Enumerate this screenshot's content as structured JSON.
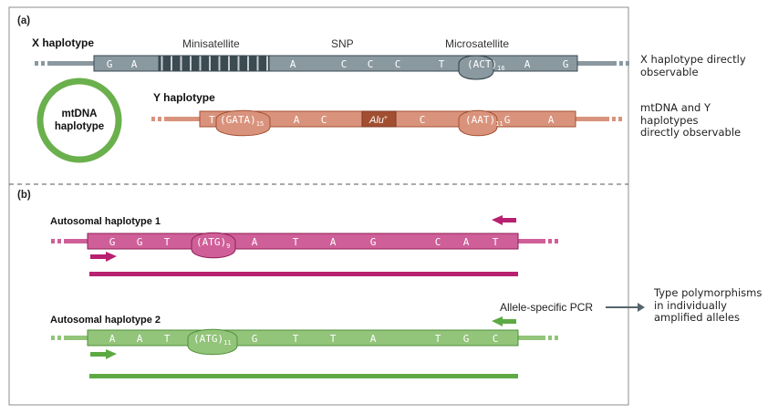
{
  "panel_a": {
    "label": "(a)",
    "x_haplotype": {
      "name": "X haplotype",
      "annotations": {
        "minisatellite": "Minisatellite",
        "snp": "SNP",
        "microsatellite": "Microsatellite"
      },
      "bases": [
        "G",
        "A",
        "A",
        "C",
        "C",
        "C",
        "T",
        "A",
        "G"
      ],
      "repeat": {
        "unit": "(ACT)",
        "count": "16"
      }
    },
    "mtdna": {
      "line1": "mtDNA",
      "line2": "haplotype"
    },
    "y_haplotype": {
      "name": "Y haplotype",
      "repeat1": {
        "prefix": "T",
        "unit": "(GATA)",
        "count": "15"
      },
      "bases_mid": [
        "A",
        "C"
      ],
      "alu": {
        "text": "Alu",
        "sup": "+"
      },
      "bases_after_alu": [
        "C"
      ],
      "repeat2": {
        "unit": "(AAT)",
        "count": "11",
        "suffix": "G"
      },
      "bases_end": [
        "A"
      ]
    },
    "notes": {
      "x_line1": "X haplotype directly",
      "x_line2": "observable",
      "my_line1": "mtDNA and Y",
      "my_line2": "haplotypes",
      "my_line3": "directly observable"
    }
  },
  "panel_b": {
    "label": "(b)",
    "auto1": {
      "name": "Autosomal haplotype 1",
      "bases_before": [
        "G",
        "G",
        "T"
      ],
      "repeat": {
        "unit": "(ATG)",
        "count": "9"
      },
      "bases_after": [
        "A",
        "T",
        "A",
        "G",
        "C",
        "A",
        "T"
      ]
    },
    "auto2": {
      "name": "Autosomal haplotype 2",
      "bases_before": [
        "A",
        "A",
        "T"
      ],
      "repeat": {
        "unit": "(ATG)",
        "count": "11"
      },
      "bases_after": [
        "G",
        "T",
        "T",
        "A",
        "T",
        "G",
        "C"
      ]
    },
    "pcr_label": "Allele-specific PCR",
    "result": {
      "line1": "Type polymorphisms",
      "line2": "in individually",
      "line3": "amplified alleles"
    }
  },
  "colors": {
    "x_fill": "#8a989f",
    "x_dark": "#2f3e47",
    "y_fill": "#d9937c",
    "y_dark": "#a24f31",
    "mt_ring": "#6ab04c",
    "auto1_fill": "#cf5f98",
    "auto1_dark": "#b8216f",
    "auto2_fill": "#92c47a",
    "auto2_dark": "#5daa44",
    "arrow_gray": "#56656d"
  }
}
